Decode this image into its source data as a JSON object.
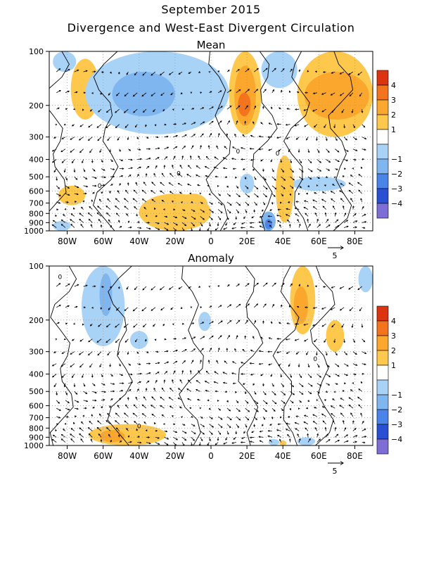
{
  "page": {
    "title": "September 2015",
    "subtitle": "Divergence and West-East Divergent Circulation"
  },
  "colors": {
    "pos1": "#fdc84c",
    "pos2": "#fba72d",
    "pos3": "#f4731d",
    "pos4": "#dc3311",
    "neg1": "#a9d2f7",
    "neg2": "#7fb6f0",
    "neg3": "#4a84e8",
    "neg4": "#2a4fd4",
    "neg5": "#7f6dd6"
  },
  "chart_data": [
    {
      "type": "contour",
      "title": "Mean",
      "x_ticks": [
        "80W",
        "60W",
        "40W",
        "20W",
        "0",
        "20E",
        "40E",
        "60E",
        "80E"
      ],
      "x_tick_values": [
        -80,
        -60,
        -40,
        -20,
        0,
        20,
        40,
        60,
        80
      ],
      "xlim": [
        -90,
        90
      ],
      "y_ticks": [
        "100",
        "200",
        "300",
        "400",
        "500",
        "600",
        "700",
        "800",
        "900",
        "1000"
      ],
      "y_tick_values": [
        100,
        200,
        300,
        400,
        500,
        600,
        700,
        800,
        900,
        1000
      ],
      "ylim": [
        1000,
        100
      ],
      "y_scale": "log",
      "contour_label": "0",
      "vector_reference": "5",
      "colorbar": {
        "labels": [
          "4",
          "3",
          "2",
          "1",
          "−1",
          "−2",
          "−3",
          "−4"
        ]
      },
      "shaded_regions": [
        {
          "level": 1,
          "lon": [
            -78,
            -62
          ],
          "p": [
            110,
            240
          ]
        },
        {
          "level": 1,
          "lon": [
            -85,
            -70
          ],
          "p": [
            560,
            720
          ]
        },
        {
          "level": -1,
          "lon": [
            -70,
            10
          ],
          "p": [
            100,
            290
          ]
        },
        {
          "level": -2,
          "lon": [
            -55,
            -20
          ],
          "p": [
            130,
            230
          ]
        },
        {
          "level": -1,
          "lon": [
            -88,
            -75
          ],
          "p": [
            100,
            130
          ]
        },
        {
          "level": 1,
          "lon": [
            10,
            28
          ],
          "p": [
            100,
            290
          ]
        },
        {
          "level": 2,
          "lon": [
            13,
            25
          ],
          "p": [
            120,
            260
          ]
        },
        {
          "level": 3,
          "lon": [
            15,
            22
          ],
          "p": [
            170,
            230
          ]
        },
        {
          "level": -1,
          "lon": [
            28,
            48
          ],
          "p": [
            100,
            160
          ]
        },
        {
          "level": 1,
          "lon": [
            48,
            90
          ],
          "p": [
            100,
            300
          ]
        },
        {
          "level": 2,
          "lon": [
            52,
            88
          ],
          "p": [
            130,
            240
          ]
        },
        {
          "level": 1,
          "lon": [
            -40,
            0
          ],
          "p": [
            620,
            1000
          ]
        },
        {
          "level": 1,
          "lon": [
            -18,
            -2
          ],
          "p": [
            620,
            800
          ]
        },
        {
          "level": -1,
          "lon": [
            16,
            24
          ],
          "p": [
            480,
            620
          ]
        },
        {
          "level": -1,
          "lon": [
            45,
            75
          ],
          "p": [
            500,
            600
          ]
        },
        {
          "level": 1,
          "lon": [
            36,
            46
          ],
          "p": [
            380,
            900
          ]
        },
        {
          "level": -1,
          "lon": [
            -88,
            -78
          ],
          "p": [
            880,
            1000
          ]
        },
        {
          "level": -2,
          "lon": [
            28,
            36
          ],
          "p": [
            780,
            1000
          ]
        },
        {
          "level": -3,
          "lon": [
            30,
            34
          ],
          "p": [
            860,
            980
          ]
        }
      ]
    },
    {
      "type": "contour",
      "title": "Anomaly",
      "x_ticks": [
        "80W",
        "60W",
        "40W",
        "20W",
        "0",
        "20E",
        "40E",
        "60E",
        "80E"
      ],
      "x_tick_values": [
        -80,
        -60,
        -40,
        -20,
        0,
        20,
        40,
        60,
        80
      ],
      "xlim": [
        -90,
        90
      ],
      "y_ticks": [
        "100",
        "200",
        "300",
        "400",
        "500",
        "600",
        "700",
        "800",
        "900",
        "1000"
      ],
      "y_tick_values": [
        100,
        200,
        300,
        400,
        500,
        600,
        700,
        800,
        900,
        1000
      ],
      "ylim": [
        1000,
        100
      ],
      "y_scale": "log",
      "contour_label": "0",
      "vector_reference": "5",
      "colorbar": {
        "labels": [
          "4",
          "3",
          "2",
          "1",
          "−1",
          "−2",
          "−3",
          "−4"
        ]
      },
      "shaded_regions": [
        {
          "level": -1,
          "lon": [
            -72,
            -48
          ],
          "p": [
            100,
            280
          ]
        },
        {
          "level": -2,
          "lon": [
            -62,
            -55
          ],
          "p": [
            110,
            190
          ]
        },
        {
          "level": -1,
          "lon": [
            -45,
            -35
          ],
          "p": [
            230,
            290
          ]
        },
        {
          "level": -1,
          "lon": [
            -7,
            0
          ],
          "p": [
            180,
            230
          ]
        },
        {
          "level": 1,
          "lon": [
            44,
            58
          ],
          "p": [
            100,
            240
          ]
        },
        {
          "level": 2,
          "lon": [
            46,
            54
          ],
          "p": [
            130,
            210
          ]
        },
        {
          "level": -1,
          "lon": [
            82,
            90
          ],
          "p": [
            100,
            140
          ]
        },
        {
          "level": 1,
          "lon": [
            64,
            74
          ],
          "p": [
            200,
            300
          ]
        },
        {
          "level": 1,
          "lon": [
            -68,
            -25
          ],
          "p": [
            760,
            1000
          ]
        },
        {
          "level": 2,
          "lon": [
            -62,
            -48
          ],
          "p": [
            820,
            960
          ]
        },
        {
          "level": -1,
          "lon": [
            32,
            38
          ],
          "p": [
            920,
            1000
          ]
        },
        {
          "level": 1,
          "lon": [
            38,
            42
          ],
          "p": [
            940,
            1000
          ]
        },
        {
          "level": -1,
          "lon": [
            48,
            58
          ],
          "p": [
            900,
            1000
          ]
        }
      ]
    }
  ]
}
